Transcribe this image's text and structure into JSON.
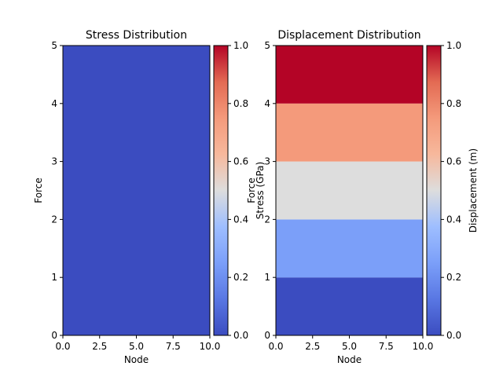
{
  "colormap": "coolwarm",
  "chart_data": [
    {
      "type": "heatmap",
      "title": "Stress Distribution",
      "xlabel": "Node",
      "ylabel": "Force",
      "xlim": [
        0,
        10
      ],
      "ylim": [
        0,
        5
      ],
      "xticks": [
        "0.0",
        "2.5",
        "5.0",
        "7.5",
        "10.0"
      ],
      "yticks": [
        "0",
        "1",
        "2",
        "3",
        "4",
        "5"
      ],
      "cells": [
        {
          "y0": 0,
          "y1": 5,
          "value": 0.0
        }
      ],
      "colorbar": {
        "label": "Stress (GPa)",
        "range": [
          0,
          1
        ],
        "ticks": [
          "0.0",
          "0.2",
          "0.4",
          "0.6",
          "0.8",
          "1.0"
        ]
      },
      "grid": false
    },
    {
      "type": "heatmap",
      "title": "Displacement Distribution",
      "xlabel": "Node",
      "ylabel": "Force",
      "xlim": [
        0,
        10
      ],
      "ylim": [
        0,
        5
      ],
      "xticks": [
        "0.0",
        "2.5",
        "5.0",
        "7.5",
        "10.0"
      ],
      "yticks": [
        "0",
        "1",
        "2",
        "3",
        "4",
        "5"
      ],
      "cells": [
        {
          "y0": 0,
          "y1": 1,
          "value": 0.0
        },
        {
          "y0": 1,
          "y1": 2,
          "value": 0.25
        },
        {
          "y0": 2,
          "y1": 3,
          "value": 0.5
        },
        {
          "y0": 3,
          "y1": 4,
          "value": 0.75
        },
        {
          "y0": 4,
          "y1": 5,
          "value": 1.0
        }
      ],
      "colorbar": {
        "label": "Displacement (m)",
        "range": [
          0,
          1
        ],
        "ticks": [
          "0.0",
          "0.2",
          "0.4",
          "0.6",
          "0.8",
          "1.0"
        ]
      },
      "grid": false
    }
  ]
}
